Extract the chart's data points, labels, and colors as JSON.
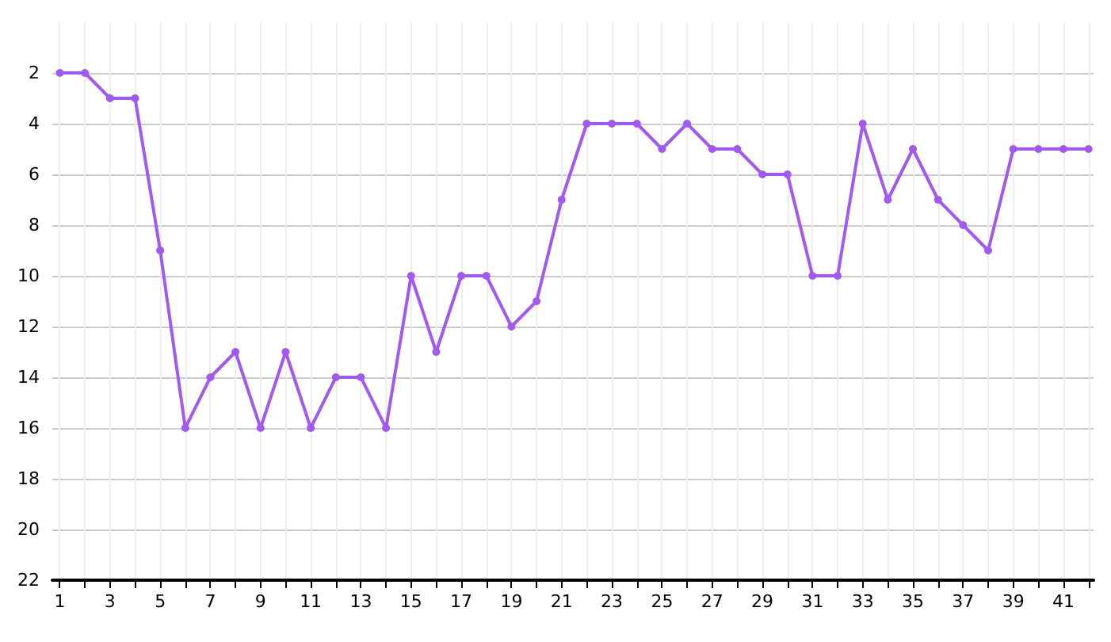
{
  "chart_data": {
    "type": "line",
    "x": [
      1,
      2,
      3,
      4,
      5,
      6,
      7,
      8,
      9,
      10,
      11,
      12,
      13,
      14,
      15,
      16,
      17,
      18,
      19,
      20,
      21,
      22,
      23,
      24,
      25,
      26,
      27,
      28,
      29,
      30,
      31,
      32,
      33,
      34,
      35,
      36,
      37,
      38,
      39,
      40,
      41,
      42
    ],
    "series": [
      {
        "color": "#a259f0",
        "values": [
          2,
          2,
          3,
          3,
          9,
          16,
          14,
          13,
          16,
          13,
          16,
          14,
          14,
          16,
          10,
          13,
          10,
          10,
          12,
          11,
          7,
          4,
          4,
          4,
          5,
          4,
          5,
          5,
          6,
          6,
          10,
          10,
          4,
          7,
          5,
          7,
          8,
          9,
          5,
          5,
          5,
          5
        ]
      }
    ],
    "xlim": [
      0.7,
      42.2
    ],
    "xticks": [
      1,
      {
        "value": 2,
        "label": null
      },
      3,
      {
        "value": 4,
        "label": null
      },
      5,
      {
        "value": 6,
        "label": null
      },
      7,
      {
        "value": 8,
        "label": null
      },
      9,
      {
        "value": 10,
        "label": null
      },
      11,
      {
        "value": 12,
        "label": null
      },
      13,
      {
        "value": 14,
        "label": null
      },
      15,
      {
        "value": 16,
        "label": null
      },
      17,
      {
        "value": 18,
        "label": null
      },
      19,
      {
        "value": 20,
        "label": null
      },
      21,
      {
        "value": 22,
        "label": null
      },
      23,
      {
        "value": 24,
        "label": null
      },
      25,
      {
        "value": 26,
        "label": null
      },
      27,
      {
        "value": 28,
        "label": null
      },
      29,
      {
        "value": 30,
        "label": null
      },
      31,
      {
        "value": 32,
        "label": null
      },
      33,
      {
        "value": 34,
        "label": null
      },
      35,
      {
        "value": 36,
        "label": null
      },
      37,
      {
        "value": 38,
        "label": null
      },
      39,
      {
        "value": 40,
        "label": null
      },
      41,
      {
        "value": 42,
        "label": null
      }
    ],
    "ylim": [
      22,
      0
    ],
    "yticks": [
      2,
      4,
      6,
      8,
      10,
      12,
      14,
      16,
      18,
      20,
      22
    ],
    "grid": true,
    "marker": "circle",
    "line_style": "solid"
  }
}
